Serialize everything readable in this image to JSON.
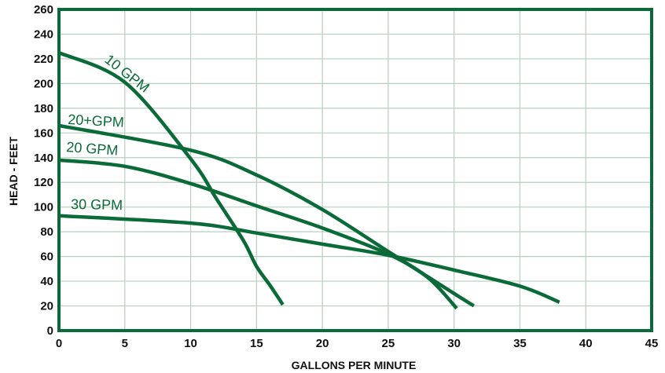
{
  "chart_data": {
    "type": "line",
    "xlabel": "GALLONS PER MINUTE",
    "ylabel": "HEAD - FEET",
    "xlim": [
      0,
      45
    ],
    "ylim": [
      0,
      260
    ],
    "x_ticks": [
      "0",
      "5",
      "10",
      "15",
      "20",
      "25",
      "30",
      "35",
      "40",
      "45"
    ],
    "y_ticks": [
      "0",
      "20",
      "40",
      "60",
      "80",
      "100",
      "120",
      "140",
      "160",
      "180",
      "200",
      "220",
      "240",
      "260"
    ],
    "grid": true,
    "color": "#0b6b38",
    "series": [
      {
        "name": "10 GPM",
        "x": [
          0,
          5,
          10,
          12,
          14,
          15,
          16,
          17
        ],
        "y": [
          225,
          201,
          139,
          106,
          73,
          52,
          37,
          21
        ]
      },
      {
        "name": "20+GPM",
        "x": [
          0,
          10,
          15,
          20,
          25,
          30,
          31.5
        ],
        "y": [
          166,
          146,
          126,
          98,
          64,
          30,
          20
        ]
      },
      {
        "name": "20 GPM",
        "x": [
          0,
          5,
          10,
          15,
          20,
          25,
          28,
          30.2
        ],
        "y": [
          138,
          133,
          119,
          101,
          83,
          62,
          43,
          18
        ]
      },
      {
        "name": "30 GPM",
        "x": [
          0,
          10,
          15,
          20,
          25,
          30,
          35,
          38
        ],
        "y": [
          93,
          87,
          79,
          70,
          61,
          49,
          36,
          23
        ]
      }
    ]
  }
}
